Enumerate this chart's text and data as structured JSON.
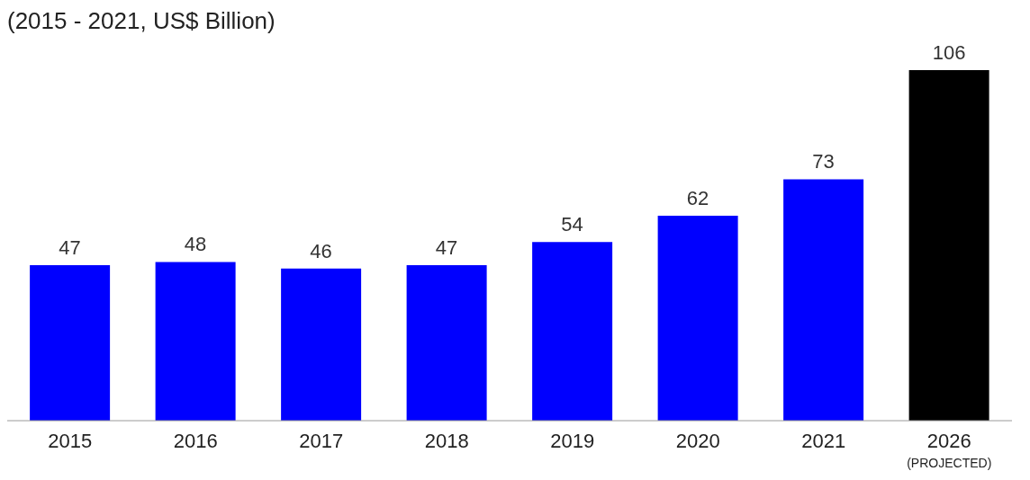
{
  "chart_data": {
    "type": "bar",
    "title": "(2015 - 2021, US$ Billion)",
    "categories": [
      "2015",
      "2016",
      "2017",
      "2018",
      "2019",
      "2020",
      "2021",
      "2026"
    ],
    "values": [
      47,
      48,
      46,
      47,
      54,
      62,
      73,
      106
    ],
    "colors": [
      "#0000ff",
      "#0000ff",
      "#0000ff",
      "#0000ff",
      "#0000ff",
      "#0000ff",
      "#0000ff",
      "#000000"
    ],
    "annotations": [
      "(PROJECTED)"
    ],
    "data_labels": true
  }
}
